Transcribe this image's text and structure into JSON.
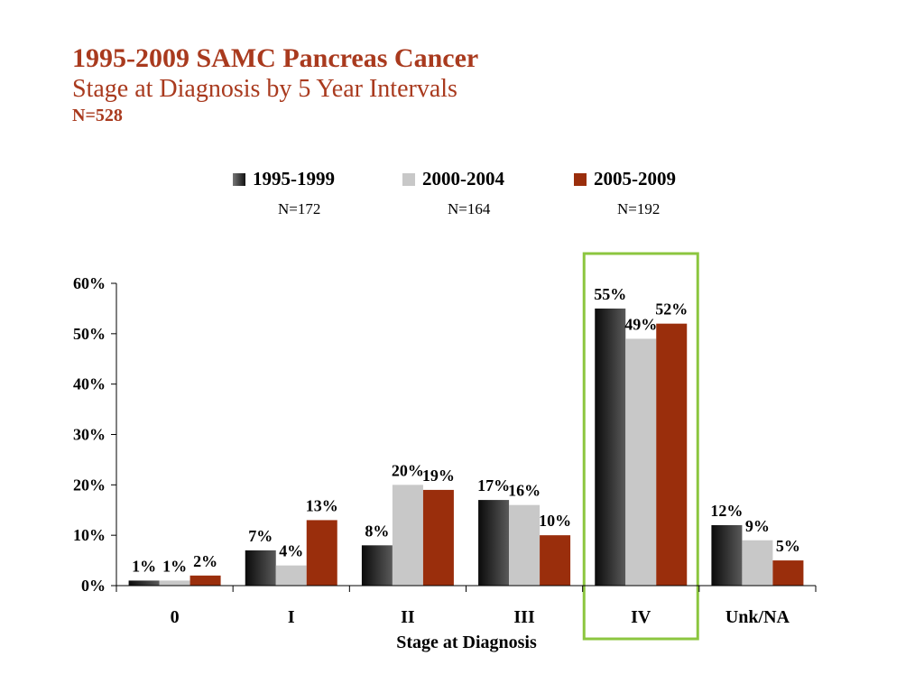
{
  "header": {
    "title": "1995-2009 SAMC Pancreas Cancer",
    "subtitle": "Stage at Diagnosis by 5 Year Intervals",
    "n_total": "N=528"
  },
  "colors": {
    "title": "#a93a1e",
    "series": [
      "#1a1a1a",
      "#c8c8c8",
      "#9a2e0c"
    ],
    "highlight_box": "#8cc63f"
  },
  "legend_n": [
    "N=172",
    "N=164",
    "N=192"
  ],
  "chart_data": {
    "type": "bar",
    "title": "",
    "xlabel": "Stage at Diagnosis",
    "ylabel": "",
    "categories": [
      "0",
      "I",
      "II",
      "III",
      "IV",
      "Unk/NA"
    ],
    "series": [
      {
        "name": "1995-1999",
        "values": [
          1,
          7,
          8,
          17,
          55,
          12
        ],
        "labels": [
          "1%",
          "7%",
          "8%",
          "17%",
          "55%",
          "12%"
        ]
      },
      {
        "name": "2000-2004",
        "values": [
          1,
          4,
          20,
          16,
          49,
          9
        ],
        "labels": [
          "1%",
          "4%",
          "20%",
          "16%",
          "49%",
          "9%"
        ]
      },
      {
        "name": "2005-2009",
        "values": [
          2,
          13,
          19,
          10,
          52,
          5
        ],
        "labels": [
          "2%",
          "13%",
          "19%",
          "10%",
          "52%",
          "5%"
        ]
      }
    ],
    "ylim": [
      0,
      60
    ],
    "yticks": [
      0,
      10,
      20,
      30,
      40,
      50,
      60
    ],
    "ytick_labels": [
      "0%",
      "10%",
      "20%",
      "30%",
      "40%",
      "50%",
      "60%"
    ],
    "grid": false,
    "legend_position": "top",
    "highlight_category": "IV"
  }
}
